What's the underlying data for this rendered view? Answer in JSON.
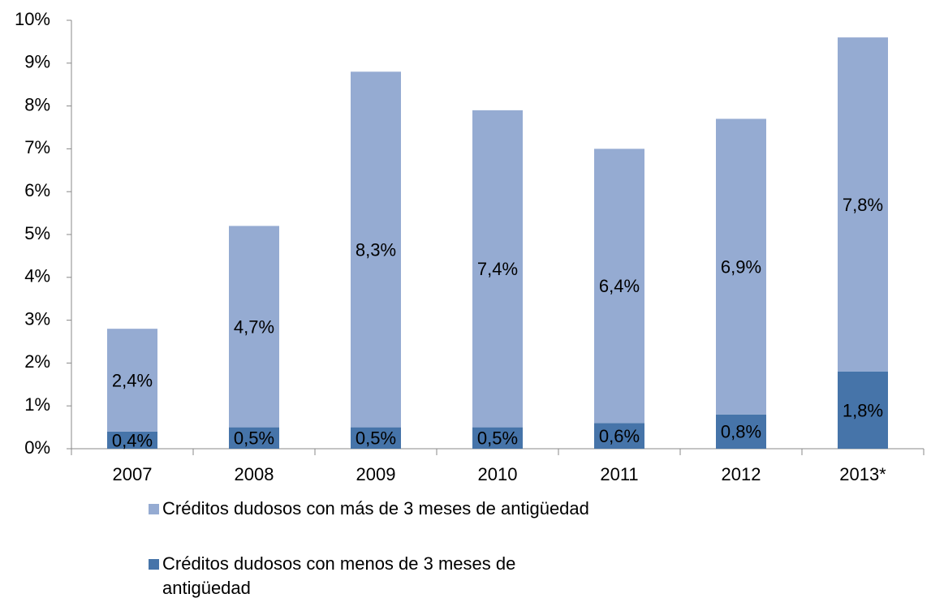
{
  "chart_data": {
    "type": "stacked_bar",
    "categories": [
      "2007",
      "2008",
      "2009",
      "2010",
      "2011",
      "2012",
      "2013*"
    ],
    "series": [
      {
        "name": "Créditos dudosos con más de 3 meses de antigüedad",
        "color": "#95abd2",
        "values": [
          2.4,
          4.7,
          8.3,
          7.4,
          6.4,
          6.9,
          7.8
        ],
        "value_labels": [
          "2,4%",
          "4,7%",
          "8,3%",
          "7,4%",
          "6,4%",
          "6,9%",
          "7,8%"
        ]
      },
      {
        "name": "Créditos dudosos con menos de 3 meses de antigüedad",
        "color": "#4674a9",
        "values": [
          0.4,
          0.5,
          0.5,
          0.5,
          0.6,
          0.8,
          1.8
        ],
        "value_labels": [
          "0,4%",
          "0,5%",
          "0,5%",
          "0,5%",
          "0,6%",
          "0,8%",
          "1,8%"
        ]
      }
    ],
    "ylim": [
      0,
      10
    ],
    "yticks": [
      {
        "value": 0,
        "label": "0%"
      },
      {
        "value": 1,
        "label": "1%"
      },
      {
        "value": 2,
        "label": "2%"
      },
      {
        "value": 3,
        "label": "3%"
      },
      {
        "value": 4,
        "label": "4%"
      },
      {
        "value": 5,
        "label": "5%"
      },
      {
        "value": 6,
        "label": "6%"
      },
      {
        "value": 7,
        "label": "7%"
      },
      {
        "value": 8,
        "label": "8%"
      },
      {
        "value": 9,
        "label": "9%"
      },
      {
        "value": 10,
        "label": "10%"
      }
    ],
    "grid": false
  }
}
